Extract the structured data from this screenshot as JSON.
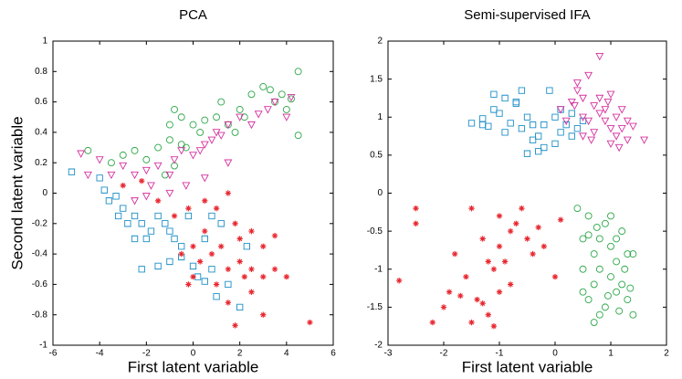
{
  "chart_data": [
    {
      "type": "scatter",
      "title": "PCA",
      "xlabel": "First latent variable",
      "ylabel": "Second latent variable",
      "xlim": [
        -6,
        6
      ],
      "ylim": [
        -1,
        1
      ],
      "xticks": [
        -6,
        -4,
        -2,
        0,
        2,
        4,
        6
      ],
      "yticks": [
        -1,
        -0.8,
        -0.6,
        -0.4,
        -0.2,
        0,
        0.2,
        0.4,
        0.6,
        0.8,
        1
      ],
      "series": [
        {
          "color": "#1b8ec6",
          "marker": "square",
          "x": [
            -5.2,
            -4,
            -3.8,
            -3.6,
            -3.3,
            -3,
            -3.2,
            -2.8,
            -2.5,
            -2.2,
            -2,
            -1.8,
            -1.5,
            -1.2,
            -1,
            -0.8,
            -0.5,
            -2.2,
            -1.5,
            -1,
            -0.5,
            0,
            0.2,
            0.5,
            0.8,
            1,
            1.5,
            2,
            0.5,
            1.2,
            -0.2,
            2.3,
            -2.5,
            0.8
          ],
          "y": [
            0.14,
            0.1,
            0.02,
            -0.05,
            -0.02,
            -0.1,
            -0.15,
            -0.2,
            -0.15,
            -0.2,
            -0.3,
            -0.25,
            -0.15,
            -0.2,
            -0.25,
            -0.3,
            -0.35,
            -0.5,
            -0.48,
            -0.45,
            -0.42,
            -0.48,
            -0.55,
            -0.58,
            -0.5,
            -0.68,
            -0.6,
            -0.75,
            -0.3,
            -0.2,
            -0.15,
            -0.35,
            -0.3,
            -0.15
          ]
        },
        {
          "color": "#2ea84a",
          "marker": "circle",
          "x": [
            -4.5,
            -3.5,
            -3,
            -2.5,
            -2,
            -1.5,
            -1,
            -0.5,
            -1,
            -0.8,
            -0.5,
            0,
            0.5,
            1,
            1.2,
            1.5,
            2,
            2.2,
            2.5,
            3,
            3.3,
            3.5,
            3.8,
            4,
            4.2,
            4.5,
            4.5,
            -0.8,
            -1.2,
            -0.3,
            0.3,
            1.8
          ],
          "y": [
            0.28,
            0.2,
            0.25,
            0.28,
            0.22,
            0.3,
            0.35,
            0.32,
            0.45,
            0.55,
            0.5,
            0.45,
            0.48,
            0.5,
            0.6,
            0.45,
            0.55,
            0.5,
            0.65,
            0.7,
            0.68,
            0.6,
            0.65,
            0.55,
            0.62,
            0.8,
            0.38,
            0.18,
            0.12,
            0.3,
            0.4,
            0.4
          ]
        },
        {
          "color": "#d4309f",
          "marker": "triangle-down",
          "x": [
            -4.8,
            -4,
            -3.5,
            -3,
            -2.5,
            -2,
            -1.5,
            -1,
            -0.8,
            -0.5,
            0,
            0.3,
            0.5,
            0.8,
            1,
            1.2,
            1.5,
            2,
            2.5,
            2.8,
            3.2,
            3.5,
            4,
            4.2,
            -2.5,
            -1.8,
            -1,
            0.5,
            1.5,
            -4.5,
            -2,
            -0.3
          ],
          "y": [
            0.26,
            0.22,
            0.12,
            0.18,
            0.12,
            0.15,
            0.18,
            0.12,
            0.22,
            0.28,
            0.25,
            0.28,
            0.32,
            0.35,
            0.4,
            0.38,
            0.45,
            0.5,
            0.45,
            0.52,
            0.55,
            0.6,
            0.5,
            0.63,
            -0.05,
            0.05,
            0,
            0.1,
            0.2,
            0.12,
            -0.02,
            0.05
          ]
        },
        {
          "color": "#e8262e",
          "marker": "asterisk",
          "x": [
            -3,
            -2.2,
            -1.5,
            -0.8,
            -0.2,
            0.5,
            1,
            1.5,
            1.8,
            2,
            2.5,
            3,
            3.5,
            -0.5,
            0,
            0.3,
            0.8,
            1.2,
            1.5,
            2,
            2.5,
            3,
            3.5,
            4,
            1,
            1.5,
            2.5,
            3,
            1.8,
            5,
            0,
            -0.2,
            2.2,
            0.5
          ],
          "y": [
            0.05,
            0.08,
            -0.05,
            -0.15,
            -0.1,
            -0.05,
            -0.1,
            0,
            -0.2,
            -0.3,
            -0.25,
            -0.35,
            -0.28,
            -0.4,
            -0.35,
            -0.45,
            -0.4,
            -0.35,
            -0.5,
            -0.45,
            -0.5,
            -0.55,
            -0.5,
            -0.55,
            -0.6,
            -0.72,
            -0.65,
            -0.8,
            -0.87,
            -0.85,
            -0.55,
            -0.6,
            -0.55,
            -0.25
          ]
        }
      ]
    },
    {
      "type": "scatter",
      "title": "Semi-supervised IFA",
      "xlabel": "First latent variable",
      "xlim": [
        -3,
        2
      ],
      "ylim": [
        -2,
        2
      ],
      "xticks": [
        -3,
        -2,
        -1,
        0,
        1,
        2
      ],
      "yticks": [
        -2,
        -1.5,
        -1,
        -0.5,
        0,
        0.5,
        1,
        1.5,
        2
      ],
      "series": [
        {
          "color": "#1b8ec6",
          "marker": "square",
          "x": [
            -1.5,
            -1.3,
            -1.2,
            -1.1,
            -1,
            -0.9,
            -0.8,
            -0.7,
            -0.6,
            -0.5,
            -0.4,
            -0.3,
            -0.2,
            -0.1,
            0,
            0.1,
            -0.6,
            -0.7,
            -1.1,
            -0.9,
            -0.3,
            -0.2,
            0,
            0.2,
            0.3,
            0.4,
            0.5,
            -0.5,
            -1.3,
            -0.4,
            0.1,
            0.3
          ],
          "y": [
            0.92,
            0.98,
            0.88,
            1.1,
            1.05,
            0.8,
            0.92,
            1.2,
            0.85,
            1,
            0.7,
            0.75,
            0.9,
            1.35,
            1,
            0.8,
            1.35,
            1.18,
            1.3,
            1.25,
            0.55,
            0.6,
            0.65,
            0.9,
            1.05,
            0.85,
            0.95,
            0.52,
            0.9,
            0.9,
            1.1,
            0.75
          ]
        },
        {
          "color": "#2ea84a",
          "marker": "circle",
          "x": [
            0.4,
            0.5,
            0.5,
            0.6,
            0.6,
            0.7,
            0.7,
            0.8,
            0.8,
            0.9,
            0.9,
            1,
            1,
            1.1,
            1.1,
            1.2,
            1.2,
            1.3,
            1.3,
            1.4,
            1.4,
            0.7,
            1,
            0.5,
            0.8,
            1.25,
            0.6,
            1.1,
            0.95,
            1.35,
            0.75,
            1.15
          ],
          "y": [
            -0.2,
            -1,
            -0.6,
            -1.4,
            -0.3,
            -0.8,
            -1.2,
            -0.6,
            -1,
            -1.5,
            -0.4,
            -0.7,
            -1.1,
            -0.9,
            -1.3,
            -0.5,
            -1.2,
            -0.8,
            -1.4,
            -1.6,
            -0.8,
            -1.7,
            -0.3,
            -1.3,
            -1.6,
            -1,
            -0.55,
            -0.6,
            -1.35,
            -1.25,
            -0.45,
            -1.55
          ]
        },
        {
          "color": "#d4309f",
          "marker": "triangle-down",
          "x": [
            0.1,
            0.3,
            0.4,
            0.5,
            0.5,
            0.6,
            0.6,
            0.7,
            0.7,
            0.8,
            0.8,
            0.9,
            0.9,
            1,
            1,
            1,
            1.1,
            1.1,
            1.2,
            1.2,
            1.3,
            1.3,
            1.4,
            1.6,
            0.4,
            0.5,
            0.8,
            0.65,
            1.15,
            0.95,
            0.2,
            0.35
          ],
          "y": [
            1.1,
            1.2,
            1.35,
            1,
            1.25,
            0.95,
            1.55,
            1.15,
            0.8,
            1.25,
            1.8,
            0.95,
            1.1,
            0.85,
            1.3,
            0.65,
            1,
            0.75,
            1.1,
            0.85,
            0.95,
            0.7,
            0.88,
            0.7,
            1.45,
            0.75,
            1.05,
            0.7,
            0.6,
            1.2,
            0.95,
            1.15
          ]
        },
        {
          "color": "#e8262e",
          "marker": "asterisk",
          "x": [
            -2.8,
            -2.5,
            -2.5,
            -2.2,
            -2,
            -1.8,
            -1.7,
            -1.6,
            -1.5,
            -1.4,
            -1.3,
            -1.2,
            -1.2,
            -1.1,
            -1,
            -1,
            -1,
            -0.9,
            -0.8,
            -0.7,
            -0.6,
            -0.5,
            -0.4,
            -0.3,
            -0.2,
            0,
            0.1,
            -1.5,
            -1.3,
            -1.1,
            -0.8,
            -1.9
          ],
          "y": [
            -1.15,
            -0.2,
            -0.4,
            -1.7,
            -1.5,
            -0.8,
            -1.35,
            -1.1,
            -1.7,
            -1.4,
            -1.45,
            -0.9,
            -1.6,
            -1,
            -0.7,
            -1.3,
            -0.3,
            -0.9,
            -0.5,
            -0.4,
            -0.2,
            -0.6,
            -0.8,
            -0.45,
            -0.7,
            -1.1,
            -0.35,
            -0.2,
            -0.6,
            -1.75,
            -1.2,
            -1.3
          ]
        }
      ]
    }
  ]
}
